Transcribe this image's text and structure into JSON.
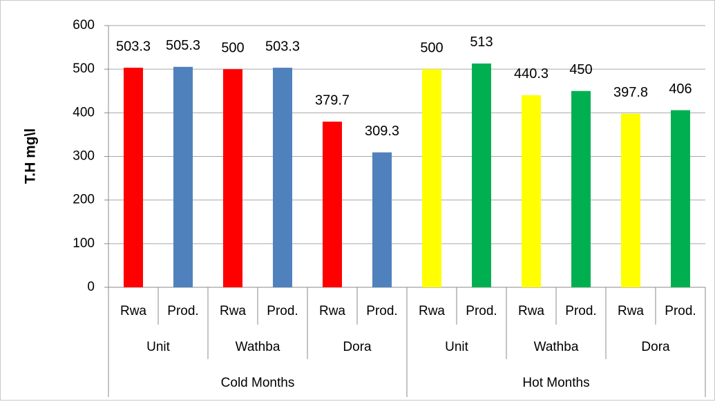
{
  "chart_data": {
    "type": "bar",
    "y_label": "T.H mg\\l",
    "categories": [
      "Rwa",
      "Prod.",
      "Rwa",
      "Prod.",
      "Rwa",
      "Prod.",
      "Rwa",
      "Prod.",
      "Rwa",
      "Prod.",
      "Rwa",
      "Prod."
    ],
    "subgroups": [
      "Unit",
      "Wathba",
      "Dora",
      "Unit",
      "Wathba",
      "Dora"
    ],
    "supergroups": [
      "Cold Months",
      "Hot Months"
    ],
    "values": [
      503.3,
      505.3,
      500,
      503.3,
      379.7,
      309.3,
      500,
      513,
      440.3,
      450,
      397.8,
      406
    ],
    "colors": [
      "#ff0000",
      "#4f81bd",
      "#ff0000",
      "#4f81bd",
      "#ff0000",
      "#4f81bd",
      "#ffff00",
      "#00b050",
      "#ffff00",
      "#00b050",
      "#ffff00",
      "#00b050"
    ],
    "ylim": [
      0,
      600
    ],
    "yticks": [
      0,
      100,
      200,
      300,
      400,
      500,
      600
    ],
    "grid": true
  }
}
